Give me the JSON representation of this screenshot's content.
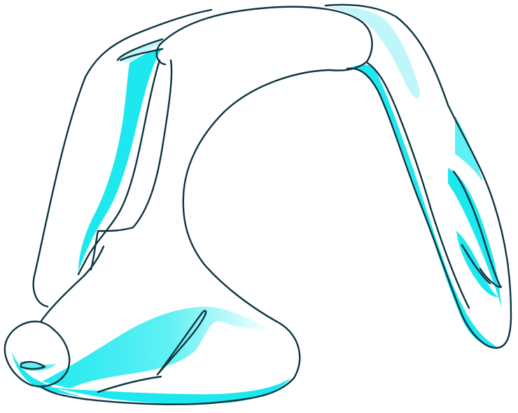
{
  "illustration": {
    "subject_icon": "hand-icon",
    "colors": {
      "background": "#ffffff",
      "outline": "#0d3440",
      "fill": "#ffffff",
      "shade_strong": "#1ee8ef",
      "shade_light": "#bff6f9"
    }
  }
}
